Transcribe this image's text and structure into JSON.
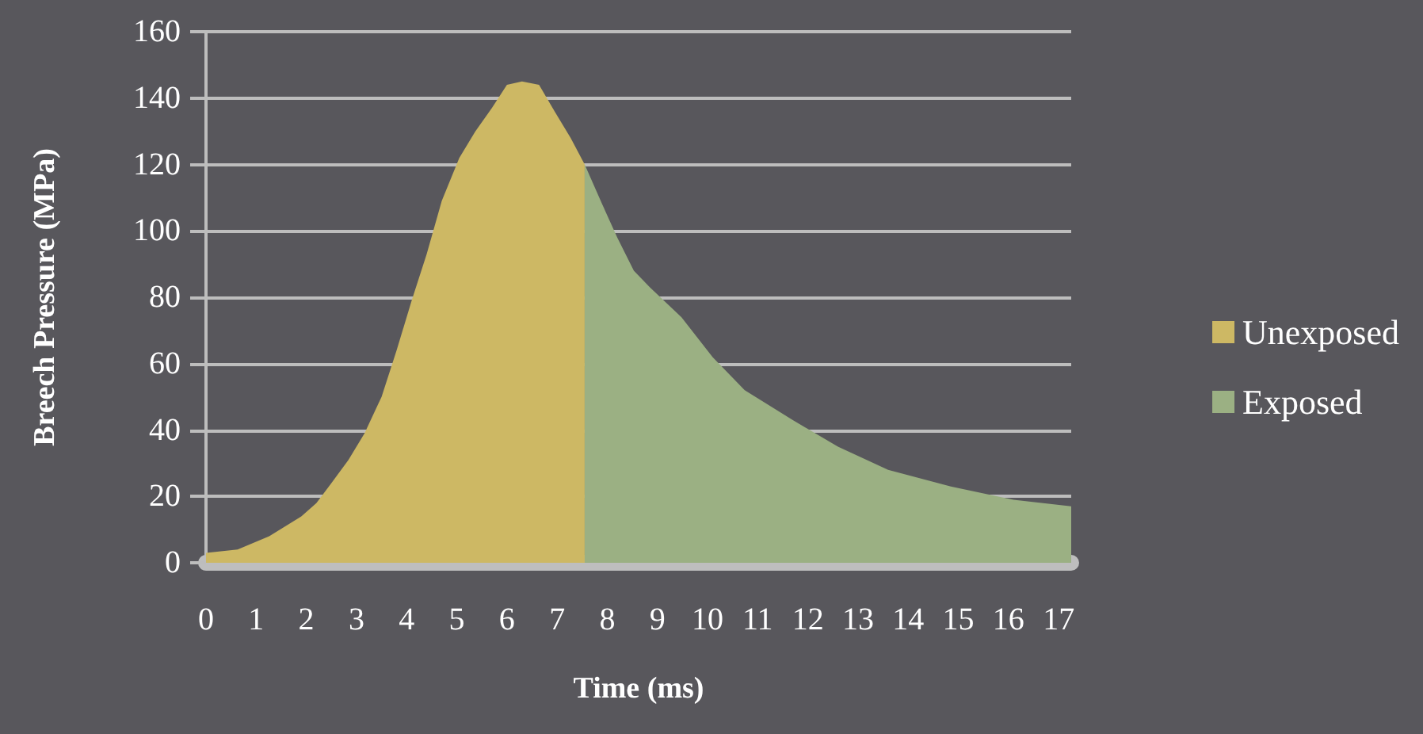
{
  "chart_data": {
    "type": "area",
    "xlabel": "Time (ms)",
    "ylabel": "Breech Pressure (MPa)",
    "xlim": [
      0,
      17.25
    ],
    "xticks": [
      0,
      1,
      2,
      3,
      4,
      5,
      6,
      7,
      8,
      9,
      10,
      11,
      12,
      13,
      14,
      15,
      16,
      17
    ],
    "ylim": [
      0,
      160
    ],
    "yticks": [
      0,
      20,
      40,
      60,
      80,
      100,
      120,
      140,
      160
    ],
    "grid": "y",
    "legend": "right",
    "series": [
      {
        "name": "Unexposed",
        "color": "#cdb864",
        "x": [
          0,
          0.63,
          1.26,
          1.9,
          2.2,
          2.5,
          2.84,
          3.16,
          3.5,
          3.8,
          4.1,
          4.4,
          4.7,
          5.05,
          5.37,
          5.7,
          6.0,
          6.3,
          6.64,
          6.95,
          7.27,
          7.55
        ],
        "values": [
          3,
          4,
          8,
          14,
          18,
          24,
          31,
          39,
          50,
          64,
          79,
          93,
          109,
          122,
          130,
          137,
          144,
          145,
          144,
          136,
          128,
          120
        ]
      },
      {
        "name": "Exposed",
        "color": "#9bb083",
        "x": [
          7.55,
          7.9,
          8.2,
          8.53,
          8.85,
          9.48,
          10.1,
          10.74,
          11.7,
          12.6,
          13.6,
          14.85,
          16.1,
          17.25
        ],
        "values": [
          120,
          108,
          98,
          88,
          83,
          74,
          62,
          52,
          43,
          35,
          28,
          23,
          19,
          17
        ]
      }
    ]
  }
}
